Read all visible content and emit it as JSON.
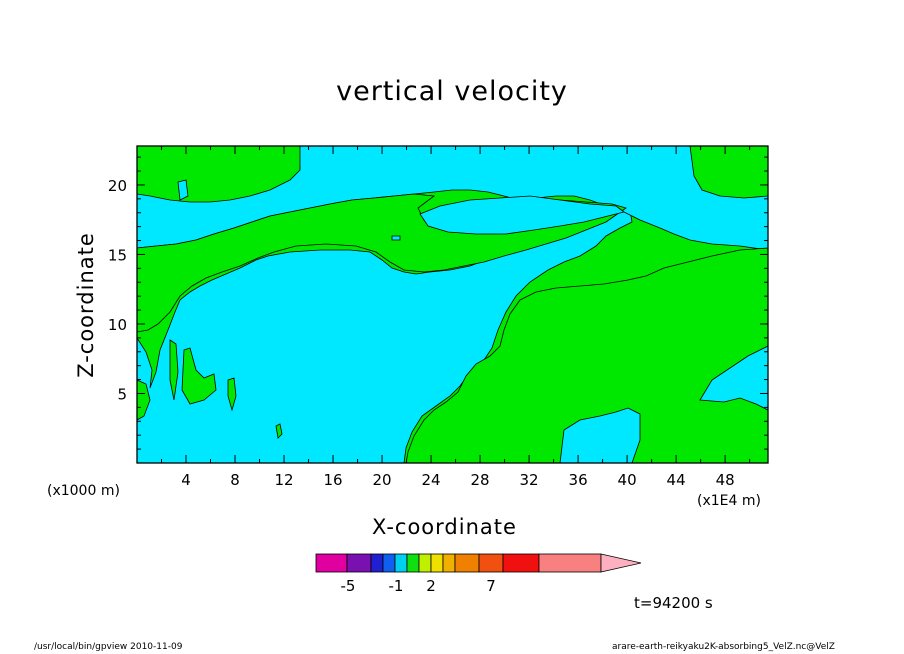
{
  "chart_data": {
    "type": "heatmap",
    "title": "vertical velocity",
    "xlabel": "X-coordinate",
    "ylabel": "Z-coordinate",
    "x_unit_note": "(x1000 m)",
    "x_unit_note_right": "(x1E4 m)",
    "xlim": [
      0,
      51.5
    ],
    "ylim": [
      0,
      22.8
    ],
    "x_ticks": [
      "4",
      "8",
      "12",
      "16",
      "20",
      "24",
      "28",
      "32",
      "36",
      "40",
      "44",
      "48"
    ],
    "y_ticks": [
      "5",
      "10",
      "15",
      "20"
    ],
    "colorbar": {
      "labels": [
        "-5",
        "-1",
        "2",
        "7"
      ],
      "colors": [
        "#e000a0",
        "#7a10b0",
        "#2020d0",
        "#1060f0",
        "#00d0f0",
        "#10e010",
        "#c0f000",
        "#f0e000",
        "#f0b000",
        "#f08000",
        "#f05010",
        "#f01010",
        "#f88080",
        "#ffb0c0"
      ]
    },
    "fill_colors": {
      "negative": "#00e8ff",
      "positive": "#00e800"
    },
    "time_label": "t=94200 s"
  },
  "footer": {
    "left": "/usr/local/bin/gpview   2010-11-09",
    "right": "arare-earth-reikyaku2K-absorbing5_VelZ.nc@VelZ"
  }
}
